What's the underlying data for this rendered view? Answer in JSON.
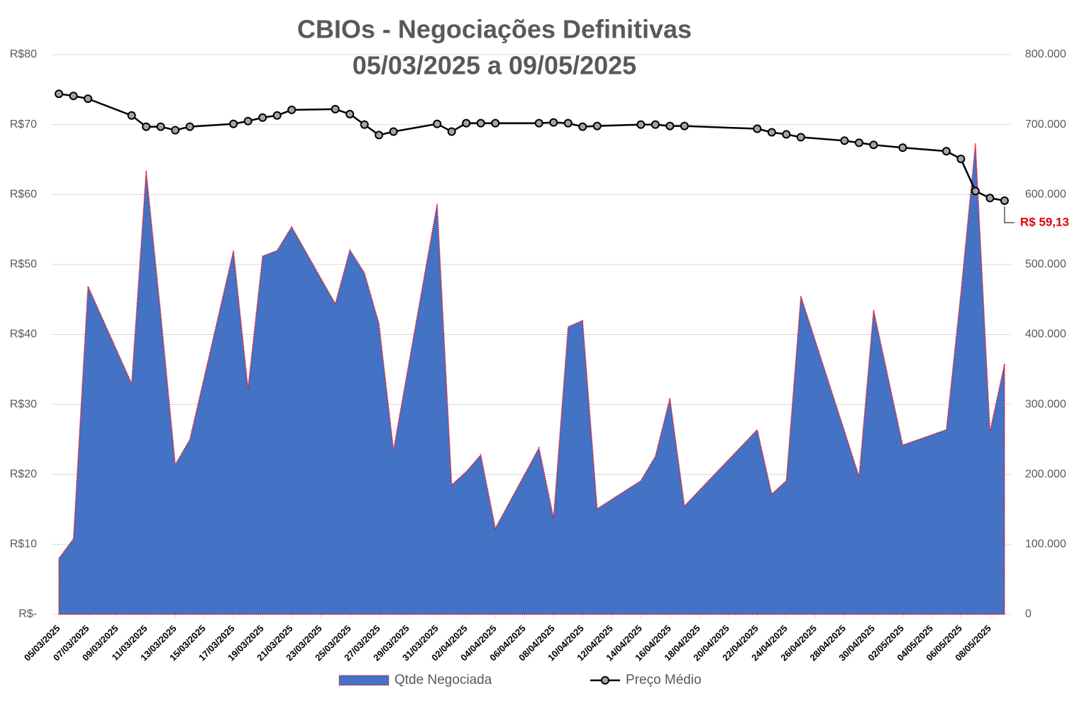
{
  "chart_data": {
    "type": "area-line",
    "title": "CBIOs - Negociações Definitivas",
    "subtitle": "05/03/2025 a 09/05/2025",
    "x": [
      "05/03/2025",
      "06/03/2025",
      "07/03/2025",
      "10/03/2025",
      "11/03/2025",
      "12/03/2025",
      "13/03/2025",
      "14/03/2025",
      "17/03/2025",
      "18/03/2025",
      "19/03/2025",
      "20/03/2025",
      "21/03/2025",
      "24/03/2025",
      "25/03/2025",
      "26/03/2025",
      "27/03/2025",
      "28/03/2025",
      "31/03/2025",
      "01/04/2025",
      "02/04/2025",
      "03/04/2025",
      "04/04/2025",
      "07/04/2025",
      "08/04/2025",
      "09/04/2025",
      "10/04/2025",
      "11/04/2025",
      "14/04/2025",
      "15/04/2025",
      "16/04/2025",
      "17/04/2025",
      "22/04/2025",
      "23/04/2025",
      "24/04/2025",
      "25/04/2025",
      "28/04/2025",
      "29/04/2025",
      "30/04/2025",
      "02/05/2025",
      "05/05/2025",
      "06/05/2025",
      "07/05/2025",
      "08/05/2025",
      "09/05/2025"
    ],
    "xlim": [
      "05/03/2025",
      "09/05/2025"
    ],
    "xticks": [
      "05/03/2025",
      "07/03/2025",
      "09/03/2025",
      "11/03/2025",
      "13/03/2025",
      "15/03/2025",
      "17/03/2025",
      "19/03/2025",
      "21/03/2025",
      "23/03/2025",
      "25/03/2025",
      "27/03/2025",
      "29/03/2025",
      "31/03/2025",
      "02/04/2025",
      "04/04/2025",
      "06/04/2025",
      "08/04/2025",
      "10/04/2025",
      "12/04/2025",
      "14/04/2025",
      "16/04/2025",
      "18/04/2025",
      "20/04/2025",
      "22/04/2025",
      "24/04/2025",
      "26/04/2025",
      "28/04/2025",
      "30/04/2025",
      "02/05/2025",
      "04/05/2025",
      "06/05/2025",
      "08/05/2025"
    ],
    "ylim": [
      0,
      80
    ],
    "yticks": [
      {
        "value": 0,
        "label": "R$-"
      },
      {
        "value": 10,
        "label": "R$10"
      },
      {
        "value": 20,
        "label": "R$20"
      },
      {
        "value": 30,
        "label": "R$30"
      },
      {
        "value": 40,
        "label": "R$40"
      },
      {
        "value": 50,
        "label": "R$50"
      },
      {
        "value": 60,
        "label": "R$60"
      },
      {
        "value": 70,
        "label": "R$70"
      },
      {
        "value": 80,
        "label": "R$80"
      }
    ],
    "y2lim": [
      0,
      800000
    ],
    "y2ticks": [
      0,
      {
        "value": 100000,
        "label": "100.000"
      },
      {
        "value": 200000,
        "label": "200.000"
      },
      {
        "value": 300000,
        "label": "300.000"
      },
      {
        "value": 400000,
        "label": "400.000"
      },
      {
        "value": 500000,
        "label": "500.000"
      },
      {
        "value": 600000,
        "label": "600.000"
      },
      {
        "value": 700000,
        "label": "700.000"
      },
      {
        "value": 800000,
        "label": "800.000"
      }
    ],
    "grid": true,
    "legend": "bottom",
    "series": [
      {
        "name": "Qtde Negociada",
        "type": "area",
        "axis": "y2",
        "color": "#4472c4",
        "values": [
          80000,
          108000,
          469000,
          330000,
          634000,
          430000,
          214000,
          250000,
          520000,
          323000,
          512000,
          520000,
          554000,
          444000,
          521000,
          488000,
          416000,
          235000,
          587000,
          185000,
          204000,
          228000,
          123000,
          238000,
          138000,
          411000,
          420000,
          151000,
          191000,
          226000,
          309000,
          155000,
          264000,
          172000,
          191000,
          455000,
          262000,
          197000,
          435000,
          242000,
          264000,
          460000,
          673000,
          262000,
          358000
        ]
      },
      {
        "name": "Preço Médio",
        "type": "line",
        "axis": "y",
        "color": "#000000",
        "values": [
          74.4,
          74.1,
          73.7,
          71.3,
          69.7,
          69.7,
          69.2,
          69.7,
          70.1,
          70.5,
          71.0,
          71.3,
          72.1,
          72.2,
          71.5,
          70.0,
          68.5,
          69.0,
          70.1,
          69.0,
          70.2,
          70.2,
          70.2,
          70.2,
          70.3,
          70.2,
          69.7,
          69.8,
          70.0,
          70.0,
          69.8,
          69.8,
          69.4,
          68.9,
          68.6,
          68.2,
          67.7,
          67.4,
          67.1,
          66.7,
          66.2,
          65.1,
          60.5,
          59.5,
          59.13
        ],
        "value_labels": [
          null,
          null,
          null,
          null,
          null,
          null,
          null,
          null,
          null,
          null,
          null,
          null,
          null,
          null,
          null,
          null,
          null,
          null,
          null,
          null,
          null,
          null,
          null,
          null,
          null,
          null,
          null,
          null,
          null,
          null,
          null,
          null,
          null,
          null,
          null,
          null,
          null,
          null,
          null,
          null,
          null,
          null,
          null,
          null,
          "R$ 59,13"
        ]
      }
    ]
  }
}
